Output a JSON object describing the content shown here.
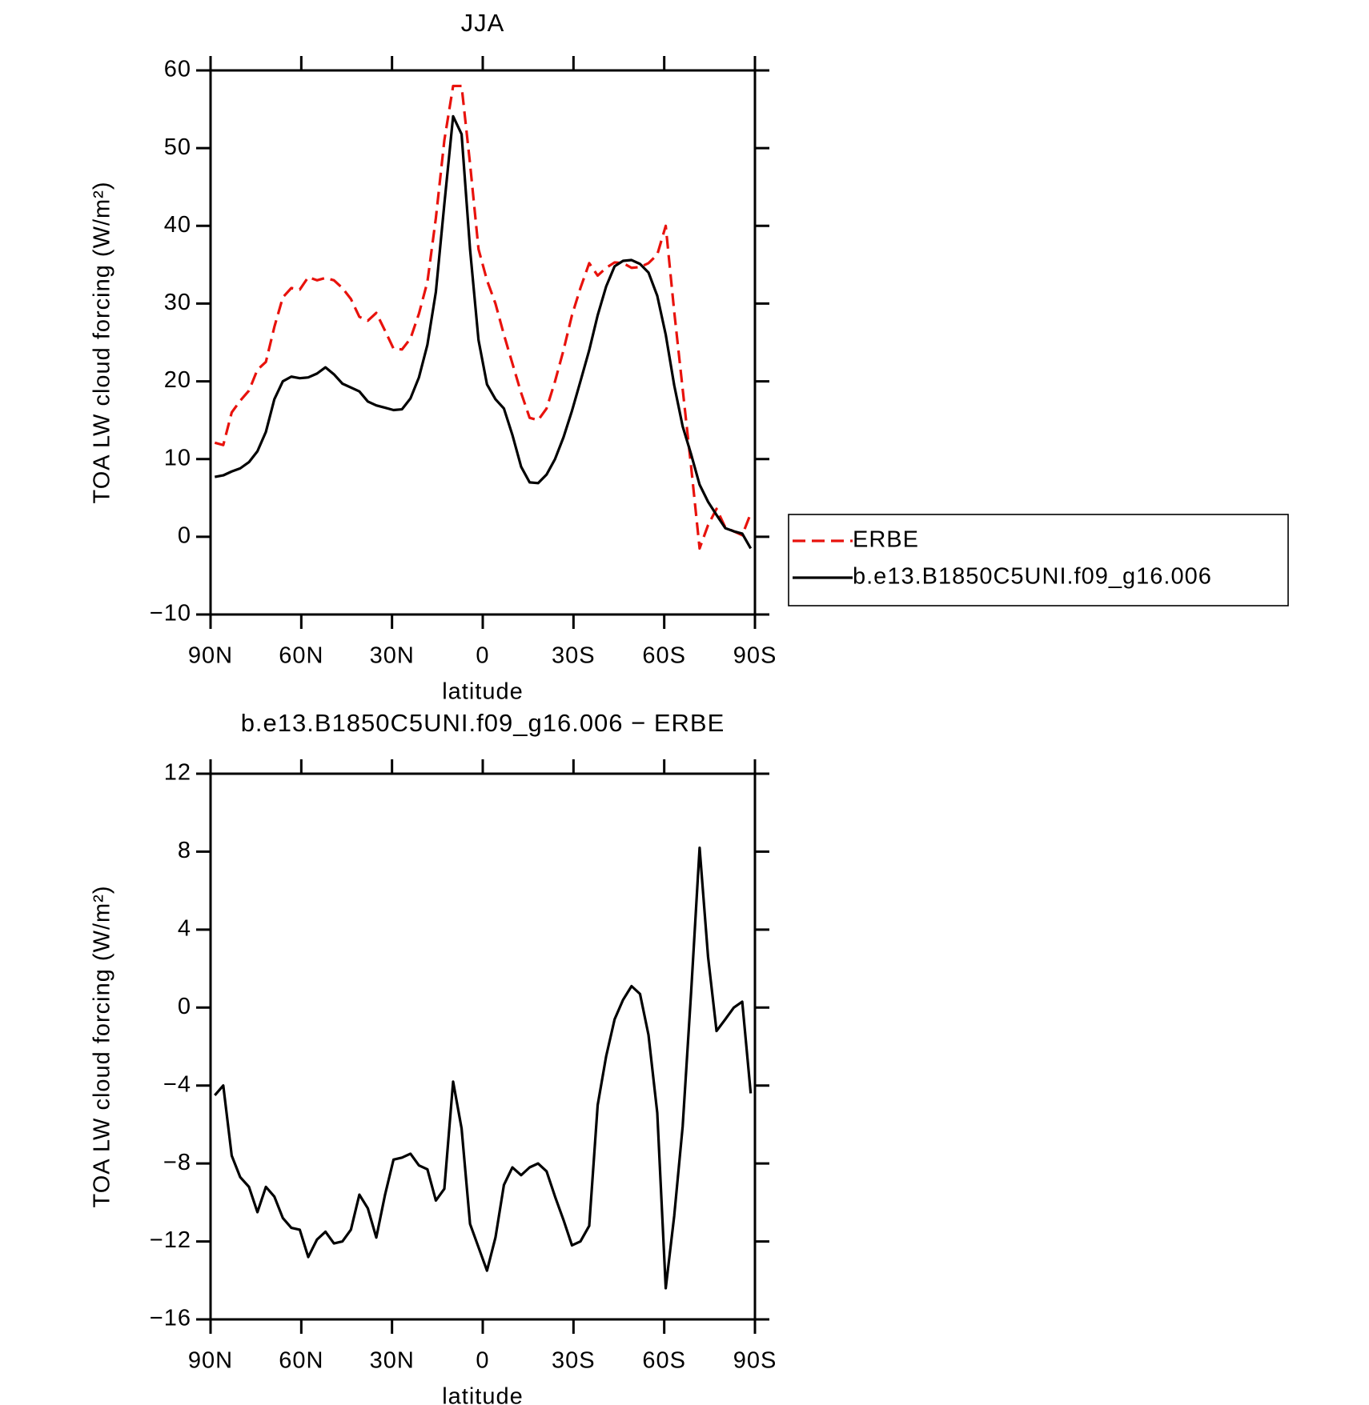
{
  "chart_data": [
    {
      "type": "line",
      "title": "JJA",
      "xlabel": "latitude",
      "ylabel": "TOA LW cloud forcing (W/m²)",
      "x": [
        88.6,
        85.8,
        83.0,
        80.2,
        77.3,
        74.5,
        71.7,
        68.9,
        66.1,
        63.3,
        60.5,
        57.7,
        54.8,
        52.0,
        49.2,
        46.4,
        43.6,
        40.8,
        38.0,
        35.2,
        32.3,
        29.5,
        26.7,
        23.9,
        21.1,
        18.3,
        15.5,
        12.7,
        9.8,
        7.0,
        4.2,
        1.4,
        -1.4,
        -4.2,
        -7.0,
        -9.8,
        -12.7,
        -15.5,
        -18.3,
        -21.1,
        -23.9,
        -26.7,
        -29.5,
        -32.3,
        -35.2,
        -38.0,
        -40.8,
        -43.6,
        -46.4,
        -49.2,
        -52.0,
        -54.8,
        -57.7,
        -60.5,
        -63.3,
        -66.1,
        -68.9,
        -71.7,
        -74.5,
        -77.3,
        -80.2,
        -83.0,
        -85.8,
        -88.6
      ],
      "series": [
        {
          "name": "ERBE",
          "color": "#e8120c",
          "line_style": "dashed",
          "values": [
            12.1,
            11.8,
            16,
            17.5,
            18.8,
            21.5,
            22.5,
            27,
            30.8,
            32,
            31.8,
            33.4,
            33,
            33.3,
            33,
            32,
            30.6,
            28.3,
            27.8,
            28.8,
            26.5,
            24.2,
            24.1,
            25.5,
            28.7,
            32.8,
            41,
            51,
            58,
            58,
            48,
            37,
            33,
            30,
            26,
            22.3,
            18.5,
            15.3,
            15,
            16.5,
            20,
            24,
            28.5,
            32,
            35.2,
            33.6,
            34.6,
            35.3,
            35.2,
            34.6,
            34.7,
            35.2,
            36.3,
            40,
            29,
            19,
            9,
            -1.5,
            1.5,
            3.6,
            1.2,
            0.7,
            0.2,
            3
          ]
        },
        {
          "name": "b.e13.B1850C5UNI.f09_g16.006",
          "color": "#000000",
          "line_style": "solid",
          "values": [
            7.7,
            7.9,
            8.4,
            8.8,
            9.6,
            11,
            13.5,
            17.7,
            20,
            20.6,
            20.4,
            20.5,
            21,
            21.8,
            20.9,
            19.7,
            19.2,
            18.7,
            17.4,
            16.9,
            16.6,
            16.3,
            16.4,
            17.8,
            20.5,
            24.7,
            31.5,
            42.8,
            54.1,
            51.8,
            37,
            25.3,
            19.6,
            17.7,
            16.5,
            13.1,
            9,
            7,
            6.9,
            8,
            10,
            12.8,
            16.2,
            20,
            24,
            28.5,
            32.2,
            34.8,
            35.5,
            35.6,
            35.1,
            34,
            31,
            26,
            19.5,
            14.2,
            10.6,
            6.7,
            4.5,
            2.8,
            1.1,
            0.7,
            0.4,
            -1.5
          ]
        }
      ],
      "xlim": [
        90,
        -90
      ],
      "xticks": [
        {
          "value": 90,
          "label": "90N"
        },
        {
          "value": 60,
          "label": "60N"
        },
        {
          "value": 30,
          "label": "30N"
        },
        0,
        {
          "value": -30,
          "label": "30S"
        },
        {
          "value": -60,
          "label": "60S"
        },
        {
          "value": -90,
          "label": "90S"
        }
      ],
      "ylim": [
        -10,
        60
      ],
      "yticks": [
        {
          "value": -10,
          "label": "−10"
        },
        0,
        10,
        20,
        30,
        40,
        50,
        60
      ],
      "legend": "outside-right",
      "grid": false
    },
    {
      "type": "line",
      "title": "b.e13.B1850C5UNI.f09_g16.006 − ERBE",
      "xlabel": "latitude",
      "ylabel": "TOA LW cloud forcing (W/m²)",
      "x": [
        88.6,
        85.8,
        83.0,
        80.2,
        77.3,
        74.5,
        71.7,
        68.9,
        66.1,
        63.3,
        60.5,
        57.7,
        54.8,
        52.0,
        49.2,
        46.4,
        43.6,
        40.8,
        38.0,
        35.2,
        32.3,
        29.5,
        26.7,
        23.9,
        21.1,
        18.3,
        15.5,
        12.7,
        9.8,
        7.0,
        4.2,
        1.4,
        -1.4,
        -4.2,
        -7.0,
        -9.8,
        -12.7,
        -15.5,
        -18.3,
        -21.1,
        -23.9,
        -26.7,
        -29.5,
        -32.3,
        -35.2,
        -38.0,
        -40.8,
        -43.6,
        -46.4,
        -49.2,
        -52.0,
        -54.8,
        -57.7,
        -60.5,
        -63.3,
        -66.1,
        -68.9,
        -71.7,
        -74.5,
        -77.3,
        -80.2,
        -83.0,
        -85.8,
        -88.6
      ],
      "values": [
        -4.5,
        -4.0,
        -7.6,
        -8.7,
        -9.2,
        -10.5,
        -9.2,
        -9.7,
        -10.8,
        -11.3,
        -11.4,
        -12.8,
        -11.9,
        -11.5,
        -12.1,
        -12.0,
        -11.4,
        -9.6,
        -10.3,
        -11.8,
        -9.6,
        -7.8,
        -7.7,
        -7.5,
        -8.1,
        -8.3,
        -9.9,
        -9.3,
        -3.8,
        -6.2,
        -11.1,
        -12.3,
        -13.5,
        -11.8,
        -9.1,
        -8.2,
        -8.6,
        -8.2,
        -8.0,
        -8.4,
        -9.7,
        -10.9,
        -12.2,
        -12.0,
        -11.2,
        -5.0,
        -2.5,
        -0.6,
        0.4,
        1.1,
        0.7,
        -1.4,
        -5.4,
        -14.4,
        -10.7,
        -6.1,
        0.8,
        8.2,
        2.6,
        -1.2,
        -0.6,
        0.0,
        0.3,
        -4.4
      ],
      "color": "#000000",
      "xlim": [
        90,
        -90
      ],
      "xticks": [
        {
          "value": 90,
          "label": "90N"
        },
        {
          "value": 60,
          "label": "60N"
        },
        {
          "value": 30,
          "label": "30N"
        },
        0,
        {
          "value": -30,
          "label": "30S"
        },
        {
          "value": -60,
          "label": "60S"
        },
        {
          "value": -90,
          "label": "90S"
        }
      ],
      "ylim": [
        -16,
        12
      ],
      "yticks": [
        {
          "value": -16,
          "label": "−16"
        },
        {
          "value": -12,
          "label": "−12"
        },
        {
          "value": -8,
          "label": "−8"
        },
        {
          "value": -4,
          "label": "−4"
        },
        0,
        4,
        8,
        12
      ],
      "grid": false
    }
  ]
}
